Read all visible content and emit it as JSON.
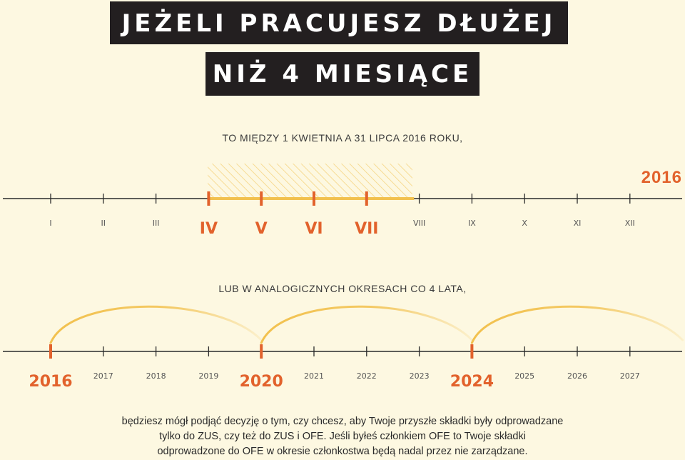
{
  "title_line1": "JEŻELI PRACUJESZ DŁUŻEJ",
  "title_line2": "NIŻ 4 MIESIĄCE",
  "period_text": "TO MIĘDZY 1 KWIETNIA A 31 LIPCA 2016 ROKU,",
  "top_year": "2016",
  "months": [
    {
      "label": "I",
      "highlight": false
    },
    {
      "label": "II",
      "highlight": false
    },
    {
      "label": "III",
      "highlight": false
    },
    {
      "label": "IV",
      "highlight": true
    },
    {
      "label": "V",
      "highlight": true
    },
    {
      "label": "VI",
      "highlight": true
    },
    {
      "label": "VII",
      "highlight": true
    },
    {
      "label": "VIII",
      "highlight": false
    },
    {
      "label": "IX",
      "highlight": false
    },
    {
      "label": "X",
      "highlight": false
    },
    {
      "label": "XI",
      "highlight": false
    },
    {
      "label": "XII",
      "highlight": false
    }
  ],
  "analog_text": "LUB W ANALOGICZNYCH OKRESACH CO 4 LATA,",
  "years": [
    {
      "label": "2016",
      "highlight": true
    },
    {
      "label": "2017",
      "highlight": false
    },
    {
      "label": "2018",
      "highlight": false
    },
    {
      "label": "2019",
      "highlight": false
    },
    {
      "label": "2020",
      "highlight": true
    },
    {
      "label": "2021",
      "highlight": false
    },
    {
      "label": "2022",
      "highlight": false
    },
    {
      "label": "2023",
      "highlight": false
    },
    {
      "label": "2024",
      "highlight": true
    },
    {
      "label": "2025",
      "highlight": false
    },
    {
      "label": "2026",
      "highlight": false
    },
    {
      "label": "2027",
      "highlight": false
    }
  ],
  "footer_lines": [
    "będziesz mógł podjąć decyzję o tym, czy chcesz, aby Twoje przyszłe składki były odprowadzane",
    "tylko do ZUS, czy też do ZUS i OFE. Jeśli byłeś członkiem OFE to Twoje składki",
    "odprowadzone do OFE w okresie członkostwa będą nadal przez nie zarządzane."
  ],
  "colors": {
    "background": "#fdf8e1",
    "banner": "#231f20",
    "accent_orange": "#e2622c",
    "highlight_yellow": "#f2c14e",
    "line": "#2a2a2a"
  }
}
